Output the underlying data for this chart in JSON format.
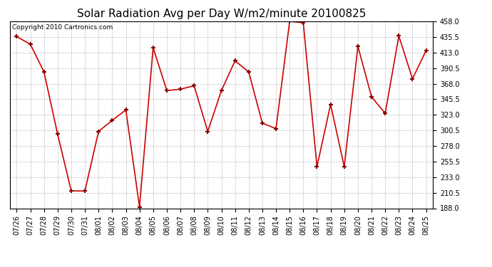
{
  "title": "Solar Radiation Avg per Day W/m2/minute 20100825",
  "copyright": "Copyright 2010 Cartronics.com",
  "labels": [
    "07/26",
    "07/27",
    "07/28",
    "07/29",
    "07/30",
    "07/31",
    "08/01",
    "08/02",
    "08/03",
    "08/04",
    "08/05",
    "08/06",
    "08/07",
    "08/08",
    "08/09",
    "08/10",
    "08/11",
    "08/12",
    "08/13",
    "08/14",
    "08/15",
    "08/16",
    "08/17",
    "08/18",
    "08/19",
    "08/20",
    "08/21",
    "08/22",
    "08/23",
    "08/24",
    "08/25"
  ],
  "values": [
    436,
    425,
    385,
    295,
    213,
    213,
    299,
    315,
    330,
    190,
    420,
    358,
    360,
    365,
    299,
    358,
    401,
    385,
    311,
    303,
    458,
    456,
    248,
    338,
    248,
    422,
    349,
    325,
    437,
    375,
    416
  ],
  "ylim": [
    188.0,
    458.0
  ],
  "yticks": [
    188.0,
    210.5,
    233.0,
    255.5,
    278.0,
    300.5,
    323.0,
    345.5,
    368.0,
    390.5,
    413.0,
    435.5,
    458.0
  ],
  "line_color": "#cc0000",
  "marker_color": "#880000",
  "bg_color": "#ffffff",
  "grid_color": "#bbbbbb",
  "title_fontsize": 11,
  "tick_fontsize": 7,
  "copyright_fontsize": 6.5
}
